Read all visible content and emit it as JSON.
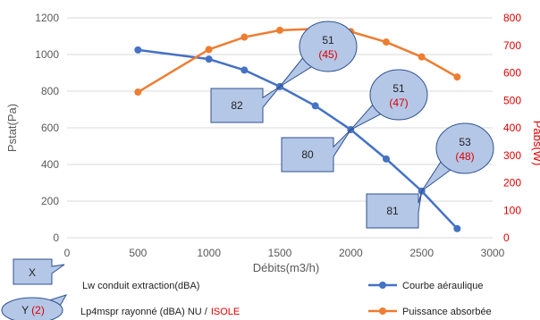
{
  "chart_data": {
    "type": "line",
    "x_axis": {
      "label": "Débits(m3/h)",
      "min": 0,
      "max": 3000,
      "ticks": [
        "0",
        "500",
        "1000",
        "1500",
        "2000",
        "2500",
        "3000"
      ]
    },
    "y_axis_left": {
      "label": "Pstat(Pa)",
      "min": 0,
      "max": 1200,
      "ticks": [
        "0",
        "200",
        "400",
        "600",
        "800",
        "1000",
        "1200"
      ]
    },
    "y_axis_right": {
      "label": "Pabs(W)",
      "min": 0,
      "max": 800,
      "ticks": [
        "0",
        "100",
        "200",
        "300",
        "400",
        "500",
        "600",
        "700",
        "800"
      ],
      "color": "#e00000"
    },
    "grid": "horizontal",
    "legend_position": "bottom-right",
    "series": [
      {
        "name": "Courbe aéraulique",
        "axis": "left",
        "color": "#4472c4",
        "points": [
          [
            500,
            1025
          ],
          [
            1000,
            975
          ],
          [
            1250,
            915
          ],
          [
            1500,
            825
          ],
          [
            1750,
            720
          ],
          [
            2000,
            590
          ],
          [
            2250,
            430
          ],
          [
            2500,
            255
          ],
          [
            2750,
            50
          ]
        ]
      },
      {
        "name": "Puissance absorbée",
        "axis": "right",
        "color": "#ed7d31",
        "points": [
          [
            500,
            530
          ],
          [
            1000,
            685
          ],
          [
            1250,
            730
          ],
          [
            1500,
            755
          ],
          [
            1750,
            760
          ],
          [
            2000,
            750
          ],
          [
            2250,
            712
          ],
          [
            2500,
            658
          ],
          [
            2750,
            585
          ]
        ]
      }
    ],
    "annotations": [
      {
        "type": "rect",
        "text": "82",
        "x": 1500,
        "y": 825
      },
      {
        "type": "ellipse",
        "text": "51",
        "sub": "(45)",
        "x": 1500,
        "y": 825
      },
      {
        "type": "rect",
        "text": "80",
        "x": 2000,
        "y": 590
      },
      {
        "type": "ellipse",
        "text": "51",
        "sub": "(47)",
        "x": 2000,
        "y": 590
      },
      {
        "type": "rect",
        "text": "81",
        "x": 2500,
        "y": 255
      },
      {
        "type": "ellipse",
        "text": "53",
        "sub": "(48)",
        "x": 2500,
        "y": 255
      }
    ]
  },
  "key": {
    "rect_symbol": "X",
    "rect_desc": "Lw conduit extraction(dBA)",
    "ellipse_symbol": "Y",
    "ellipse_sub": "(2)",
    "ellipse_desc": "Lp4mspr rayonné (dBA) NU /",
    "ellipse_desc_red": "ISOLE"
  },
  "colors": {
    "callout_fill": "#b4c7e7",
    "callout_stroke": "#2f528f"
  }
}
